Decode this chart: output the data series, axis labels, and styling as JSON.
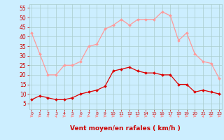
{
  "hours": [
    0,
    1,
    2,
    3,
    4,
    5,
    6,
    7,
    8,
    9,
    10,
    11,
    12,
    13,
    14,
    15,
    16,
    17,
    18,
    19,
    20,
    21,
    22,
    23
  ],
  "rafales": [
    42,
    31,
    20,
    20,
    25,
    25,
    27,
    35,
    36,
    44,
    46,
    49,
    46,
    49,
    49,
    49,
    53,
    51,
    38,
    42,
    31,
    27,
    26,
    18
  ],
  "moyen": [
    7,
    9,
    8,
    7,
    7,
    8,
    10,
    11,
    12,
    14,
    22,
    23,
    24,
    22,
    21,
    21,
    20,
    20,
    15,
    15,
    11,
    12,
    11,
    10
  ],
  "bg_color": "#cceeff",
  "grid_color": "#aacccc",
  "line_rafales_color": "#ff9999",
  "line_moyen_color": "#dd0000",
  "xlabel": "Vent moyen/en rafales ( km/h )",
  "xlabel_color": "#cc0000",
  "tick_color": "#cc0000",
  "arrow_color": "#ff8888",
  "ylim_min": 2,
  "ylim_max": 57,
  "yticks": [
    5,
    10,
    15,
    20,
    25,
    30,
    35,
    40,
    45,
    50,
    55
  ],
  "xlim_min": -0.3,
  "xlim_max": 23.3
}
